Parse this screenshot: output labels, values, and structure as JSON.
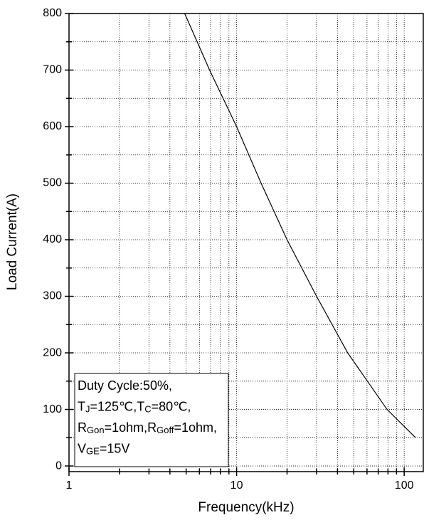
{
  "chart_data": {
    "type": "line",
    "xlabel": "Frequency(kHz)",
    "ylabel": "Load Current(A)",
    "xscale": "log",
    "grid": true,
    "xlim": [
      1,
      130
    ],
    "xticks": [
      1,
      10,
      100
    ],
    "xminor": [
      2,
      3,
      4,
      5,
      6,
      7,
      8,
      9,
      20,
      30,
      40,
      50,
      60,
      70,
      80,
      90
    ],
    "ylim": [
      -10,
      800
    ],
    "yticks": [
      0,
      100,
      200,
      300,
      400,
      500,
      600,
      700,
      800
    ],
    "yminor": [
      50,
      150,
      250,
      350,
      450,
      550,
      650,
      750
    ],
    "series": [
      {
        "color": "#000000",
        "x": [
          4.9,
          6.9,
          10,
          14,
          20,
          30,
          46,
          79,
          117
        ],
        "values": [
          800,
          700,
          600,
          500,
          400,
          300,
          200,
          100,
          50
        ]
      }
    ],
    "annotation": [
      [
        "Duty Cycle:50%,"
      ],
      [
        "T",
        {
          "sub": "J"
        },
        "=125℃,T",
        {
          "sub": "C"
        },
        "=80℃,"
      ],
      [
        "R",
        {
          "sub": "Gon"
        },
        "=1ohm,R",
        {
          "sub": "Goff"
        },
        "=1ohm,"
      ],
      [
        "V",
        {
          "sub": "GE"
        },
        "=15V"
      ]
    ]
  }
}
